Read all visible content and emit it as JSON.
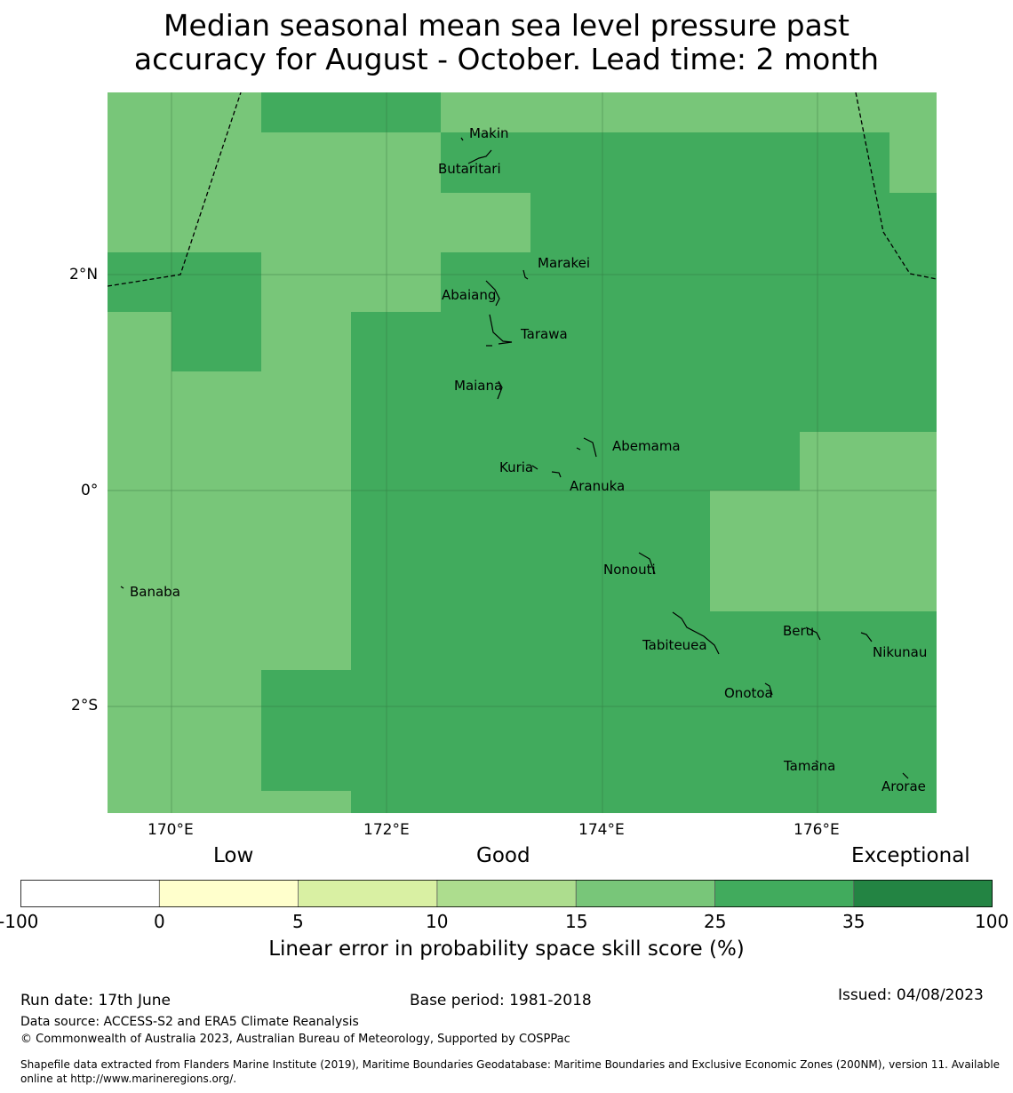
{
  "title_line1": "Median seasonal mean sea level pressure past",
  "title_line2": "accuracy for August - October. Lead time: 2 month",
  "map": {
    "lon_ticks": [
      "170°E",
      "172°E",
      "174°E",
      "176°E"
    ],
    "lat_ticks": [
      "2°N",
      "0°",
      "2°S"
    ],
    "islands": [
      "Makin",
      "Butaritari",
      "Marakei",
      "Abaiang",
      "Tarawa",
      "Maiana",
      "Abemama",
      "Kuria",
      "Aranuka",
      "Banaba",
      "Nonouti",
      "Beru",
      "Tabiteuea",
      "Nikunau",
      "Onotoa",
      "Tamana",
      "Arorae"
    ],
    "colors": {
      "skill_15_25": "#78c679",
      "skill_25_35": "#41ab5d"
    }
  },
  "colorbar": {
    "categories": [
      "Low",
      "Good",
      "Exceptional"
    ],
    "ticks": [
      "-100",
      "0",
      "5",
      "10",
      "15",
      "25",
      "35",
      "100"
    ],
    "colors": [
      "#ffffff",
      "#ffffcc",
      "#d9f0a3",
      "#addd8e",
      "#78c679",
      "#41ab5d",
      "#238443"
    ],
    "label": "Linear error in probability space skill score (%)"
  },
  "footer": {
    "run_date": "Run date: 17th June",
    "base_period": "Base period: 1981-2018",
    "issued": "Issued: 04/08/2023",
    "data_source": "Data source: ACCESS-S2 and ERA5 Climate Reanalysis",
    "copyright": "© Commonwealth of Australia 2023, Australian Bureau of Meteorology, Supported by COSPPac",
    "shapefile_line1": "Shapefile data extracted from Flanders Marine Institute (2019), Maritime Boundaries Geodatabase: Maritime Boundaries and Exclusive Economic Zones (200NM), version 11. Available",
    "shapefile_line2": "online at http://www.marineregions.org/."
  }
}
